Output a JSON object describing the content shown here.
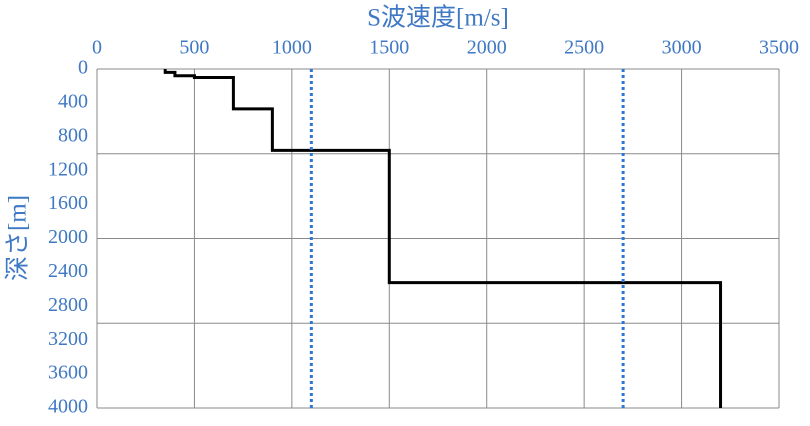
{
  "chart_data": {
    "type": "line",
    "title": "S波速度[m/s]",
    "y_label": "深さ[m]",
    "xlim": [
      0,
      3500
    ],
    "xticks": [
      0,
      500,
      1000,
      1500,
      2000,
      2500,
      3000,
      3500
    ],
    "ylim": [
      0,
      4000
    ],
    "y_inverted": true,
    "yticks": [
      0,
      400,
      800,
      1200,
      1600,
      2000,
      2400,
      2800,
      3200,
      3600,
      4000
    ],
    "ygrid": [
      1000,
      2000,
      3000,
      4000
    ],
    "grid": true,
    "series": [
      {
        "color": "#000000",
        "dashed": false,
        "x": [
          350,
          350,
          400,
          400,
          500,
          500,
          700,
          700,
          900,
          900,
          1500,
          1500,
          3200,
          3200
        ],
        "values": [
          0,
          40,
          40,
          80,
          80,
          100,
          100,
          470,
          470,
          960,
          960,
          2520,
          2520,
          4000
        ]
      },
      {
        "color": "#2f75d6",
        "dashed": true,
        "x": [
          1100,
          1100
        ],
        "values": [
          0,
          4000
        ]
      },
      {
        "color": "#2f75d6",
        "dashed": true,
        "x": [
          2700,
          2700
        ],
        "values": [
          0,
          4000
        ]
      }
    ]
  }
}
